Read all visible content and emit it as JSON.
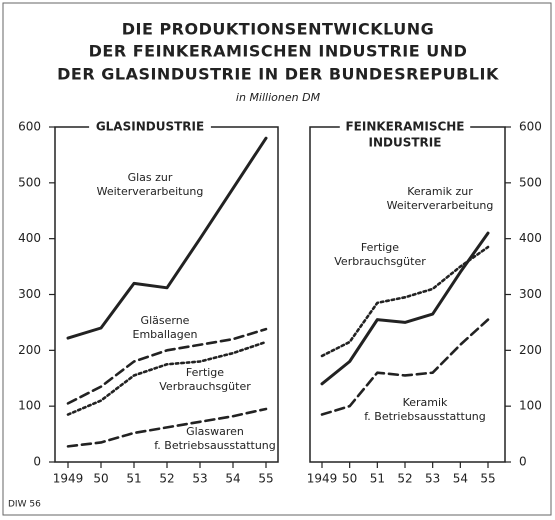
{
  "title": [
    "DIE PRODUKTIONSENTWICKLUNG",
    "DER FEINKERAMISCHEN INDUSTRIE UND",
    "DER GLASINDUSTRIE IN DER BUNDESREPUBLIK"
  ],
  "subtitle": "in Millionen DM",
  "source": "DIW 56",
  "chart_data": [
    {
      "type": "line",
      "title": [
        "GLASINDUSTRIE"
      ],
      "yaxis_side": "left",
      "categories": [
        "1949",
        "50",
        "51",
        "52",
        "53",
        "54",
        "55"
      ],
      "ylim": [
        0,
        600
      ],
      "yticks": [
        0,
        100,
        200,
        300,
        400,
        500,
        600
      ],
      "series": [
        {
          "name": [
            "Glas zur",
            "Weiterverarbeitung"
          ],
          "color": "#222",
          "style": "solid",
          "values": [
            222,
            240,
            320,
            312,
            400,
            490,
            580
          ]
        },
        {
          "name": [
            "Gläserne",
            "Emballagen"
          ],
          "color": "#222",
          "style": "dashed",
          "values": [
            105,
            135,
            180,
            200,
            210,
            220,
            238
          ]
        },
        {
          "name": [
            "Fertige",
            "Verbrauchsgüter"
          ],
          "color": "#222",
          "style": "dotted",
          "values": [
            85,
            110,
            155,
            175,
            180,
            195,
            215
          ]
        },
        {
          "name": [
            "Glaswaren",
            "f. Betriebsausstattung"
          ],
          "color": "#222",
          "style": "dashed",
          "values": [
            28,
            35,
            52,
            62,
            72,
            82,
            95
          ]
        }
      ]
    },
    {
      "type": "line",
      "title": [
        "FEINKERAMISCHE",
        "INDUSTRIE"
      ],
      "yaxis_side": "right",
      "categories": [
        "1949",
        "50",
        "51",
        "52",
        "53",
        "54",
        "55"
      ],
      "ylim": [
        0,
        600
      ],
      "yticks": [
        0,
        100,
        200,
        300,
        400,
        500,
        600
      ],
      "series": [
        {
          "name": [
            "Keramik zur",
            "Weiterverarbeitung"
          ],
          "color": "#222",
          "style": "solid",
          "values": [
            140,
            180,
            255,
            250,
            265,
            340,
            410
          ]
        },
        {
          "name": [
            "Fertige",
            "Verbrauchsgüter"
          ],
          "color": "#222",
          "style": "dotted",
          "values": [
            190,
            215,
            285,
            295,
            310,
            350,
            385
          ]
        },
        {
          "name": [
            "Keramik",
            "f. Betriebsausstattung"
          ],
          "color": "#222",
          "style": "dashed",
          "values": [
            85,
            100,
            160,
            155,
            160,
            210,
            255
          ]
        }
      ]
    }
  ]
}
